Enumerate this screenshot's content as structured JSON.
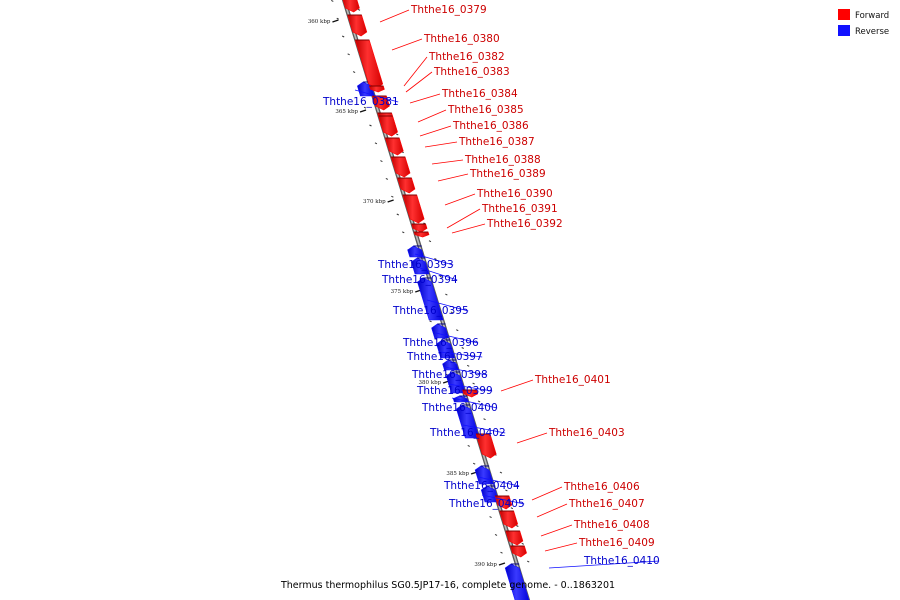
{
  "colors": {
    "forward": "#ff0000",
    "reverse": "#1111ff",
    "backbone": "#9a9a9a"
  },
  "legend": [
    {
      "label": "Forward",
      "color": "#ff0000"
    },
    {
      "label": "Reverse",
      "color": "#1111ff"
    }
  ],
  "caption": "Thermus thermophilus SG0.5JP17-16, complete genome. - 0..1863201",
  "ticks": [
    "360 kbp",
    "365 kbp",
    "370 kbp",
    "375 kbp",
    "380 kbp",
    "385 kbp",
    "390 kbp"
  ],
  "genes": [
    {
      "id": "Ththe16_0379",
      "strand": "forward"
    },
    {
      "id": "Ththe16_0380",
      "strand": "forward"
    },
    {
      "id": "Ththe16_0381",
      "strand": "reverse"
    },
    {
      "id": "Ththe16_0382",
      "strand": "forward"
    },
    {
      "id": "Ththe16_0383",
      "strand": "forward"
    },
    {
      "id": "Ththe16_0384",
      "strand": "forward"
    },
    {
      "id": "Ththe16_0385",
      "strand": "forward"
    },
    {
      "id": "Ththe16_0386",
      "strand": "forward"
    },
    {
      "id": "Ththe16_0387",
      "strand": "forward"
    },
    {
      "id": "Ththe16_0388",
      "strand": "forward"
    },
    {
      "id": "Ththe16_0389",
      "strand": "forward"
    },
    {
      "id": "Ththe16_0390",
      "strand": "forward"
    },
    {
      "id": "Ththe16_0391",
      "strand": "forward"
    },
    {
      "id": "Ththe16_0392",
      "strand": "forward"
    },
    {
      "id": "Ththe16_0393",
      "strand": "reverse"
    },
    {
      "id": "Ththe16_0394",
      "strand": "reverse"
    },
    {
      "id": "Ththe16_0395",
      "strand": "reverse"
    },
    {
      "id": "Ththe16_0396",
      "strand": "reverse"
    },
    {
      "id": "Ththe16_0397",
      "strand": "reverse"
    },
    {
      "id": "Ththe16_0398",
      "strand": "reverse"
    },
    {
      "id": "Ththe16_0399",
      "strand": "reverse"
    },
    {
      "id": "Ththe16_0400",
      "strand": "reverse"
    },
    {
      "id": "Ththe16_0401",
      "strand": "forward"
    },
    {
      "id": "Ththe16_0402",
      "strand": "reverse"
    },
    {
      "id": "Ththe16_0403",
      "strand": "forward"
    },
    {
      "id": "Ththe16_0404",
      "strand": "reverse"
    },
    {
      "id": "Ththe16_0405",
      "strand": "reverse"
    },
    {
      "id": "Ththe16_0406",
      "strand": "forward"
    },
    {
      "id": "Ththe16_0407",
      "strand": "forward"
    },
    {
      "id": "Ththe16_0408",
      "strand": "forward"
    },
    {
      "id": "Ththe16_0409",
      "strand": "forward"
    },
    {
      "id": "Ththe16_0410",
      "strand": "reverse"
    }
  ]
}
